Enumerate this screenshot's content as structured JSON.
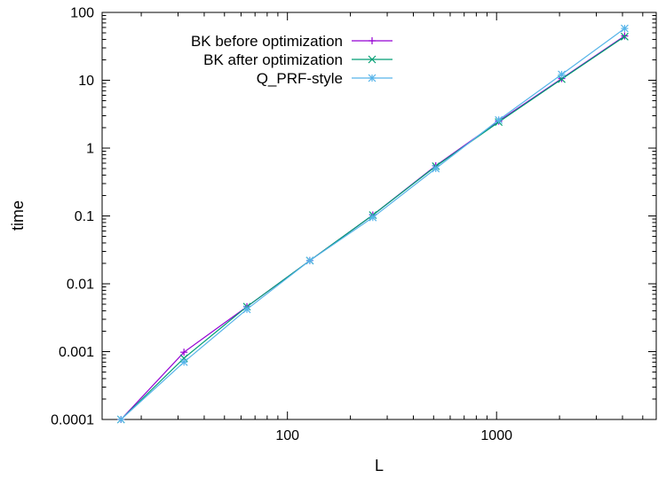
{
  "chart_data": {
    "type": "line",
    "title": "",
    "xlabel": "L",
    "ylabel": "time",
    "xscale": "log",
    "yscale": "log",
    "xlim": [
      13,
      5800
    ],
    "ylim": [
      0.0001,
      100
    ],
    "x_ticks": [
      {
        "value": 100,
        "label": "100"
      },
      {
        "value": 1000,
        "label": "1000"
      }
    ],
    "y_ticks": [
      {
        "value": 0.0001,
        "label": "0.0001"
      },
      {
        "value": 0.001,
        "label": "0.001"
      },
      {
        "value": 0.01,
        "label": "0.01"
      },
      {
        "value": 0.1,
        "label": "0.1"
      },
      {
        "value": 1,
        "label": "1"
      },
      {
        "value": 10,
        "label": "10"
      },
      {
        "value": 100,
        "label": "100"
      }
    ],
    "grid": false,
    "legend_position": "top-left",
    "x": [
      16,
      32,
      64,
      128,
      256,
      512,
      1024,
      2048,
      4096
    ],
    "series": [
      {
        "name": "BK before optimization",
        "color": "#9400d3",
        "marker": "plus",
        "values": [
          0.0001,
          0.00098,
          0.0046,
          0.022,
          0.103,
          0.55,
          2.5,
          10.6,
          45
        ]
      },
      {
        "name": "BK after optimization",
        "color": "#009e73",
        "marker": "x",
        "values": [
          0.0001,
          0.0008,
          0.0046,
          0.022,
          0.103,
          0.54,
          2.42,
          10.4,
          44
        ]
      },
      {
        "name": "Q_PRF-style",
        "color": "#56b4e9",
        "marker": "star",
        "values": [
          0.0001,
          0.0007,
          0.0042,
          0.022,
          0.095,
          0.5,
          2.6,
          12.2,
          58
        ]
      }
    ]
  }
}
